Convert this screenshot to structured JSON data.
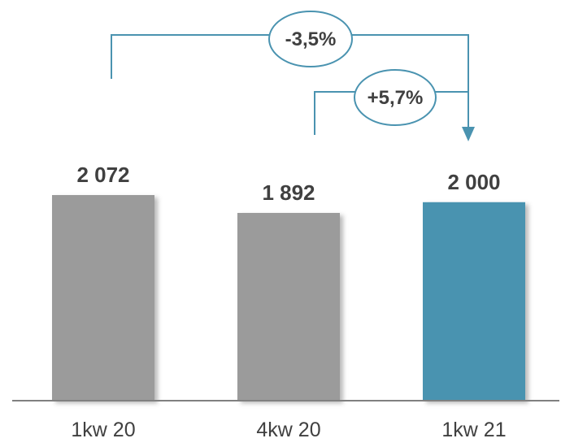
{
  "chart_data": {
    "type": "bar",
    "title": "",
    "xlabel": "",
    "ylabel": "",
    "categories": [
      "1kw 20",
      "4kw 20",
      "1kw 21"
    ],
    "values": [
      2072,
      1892,
      2000
    ],
    "value_labels": [
      "2 072",
      "1 892",
      "2 000"
    ],
    "ylim": [
      0,
      2072
    ],
    "grid": false,
    "legend": "none",
    "colors": {
      "default_bar": "#9b9b9b",
      "highlight_bar": "#4a93b0",
      "axis": "#808080",
      "connector": "#4a93b0",
      "text": "#404040"
    },
    "highlight_index": 2,
    "annotations": [
      {
        "from": "1kw 20",
        "to": "1kw 21",
        "label": "-3,5%"
      },
      {
        "from": "4kw 20",
        "to": "1kw 21",
        "label": "+5,7%"
      }
    ]
  }
}
